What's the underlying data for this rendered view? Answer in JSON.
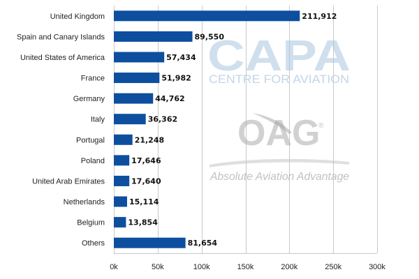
{
  "chart_data": {
    "type": "bar",
    "orientation": "horizontal",
    "categories": [
      "United Kingdom",
      "Spain and Canary Islands",
      "United States of America",
      "France",
      "Germany",
      "Italy",
      "Portugal",
      "Poland",
      "United Arab Emirates",
      "Netherlands",
      "Belgium",
      "Others"
    ],
    "values": [
      211912,
      89550,
      57434,
      51982,
      44762,
      36362,
      21248,
      17646,
      17640,
      15114,
      13854,
      81654
    ],
    "value_labels": [
      "211,912",
      "89,550",
      "57,434",
      "51,982",
      "44,762",
      "36,362",
      "21,248",
      "17,646",
      "17,640",
      "15,114",
      "13,854",
      "81,654"
    ],
    "xlim": [
      0,
      300000
    ],
    "xticks": [
      0,
      50000,
      100000,
      150000,
      200000,
      250000,
      300000
    ],
    "xtick_labels": [
      "0k",
      "50k",
      "100k",
      "150k",
      "200k",
      "250k",
      "300k"
    ],
    "title": "",
    "xlabel": "",
    "ylabel": "",
    "grid": "vertical",
    "legend": "none",
    "bar_color": "#0d4f9e",
    "grid_color": "#c8c8c8"
  },
  "watermark": {
    "capa": "CAPA",
    "centre": "CENTRE FOR AVIATION",
    "oag": "OAG",
    "registered": "®",
    "tagline": "Absolute Aviation Advantage"
  }
}
